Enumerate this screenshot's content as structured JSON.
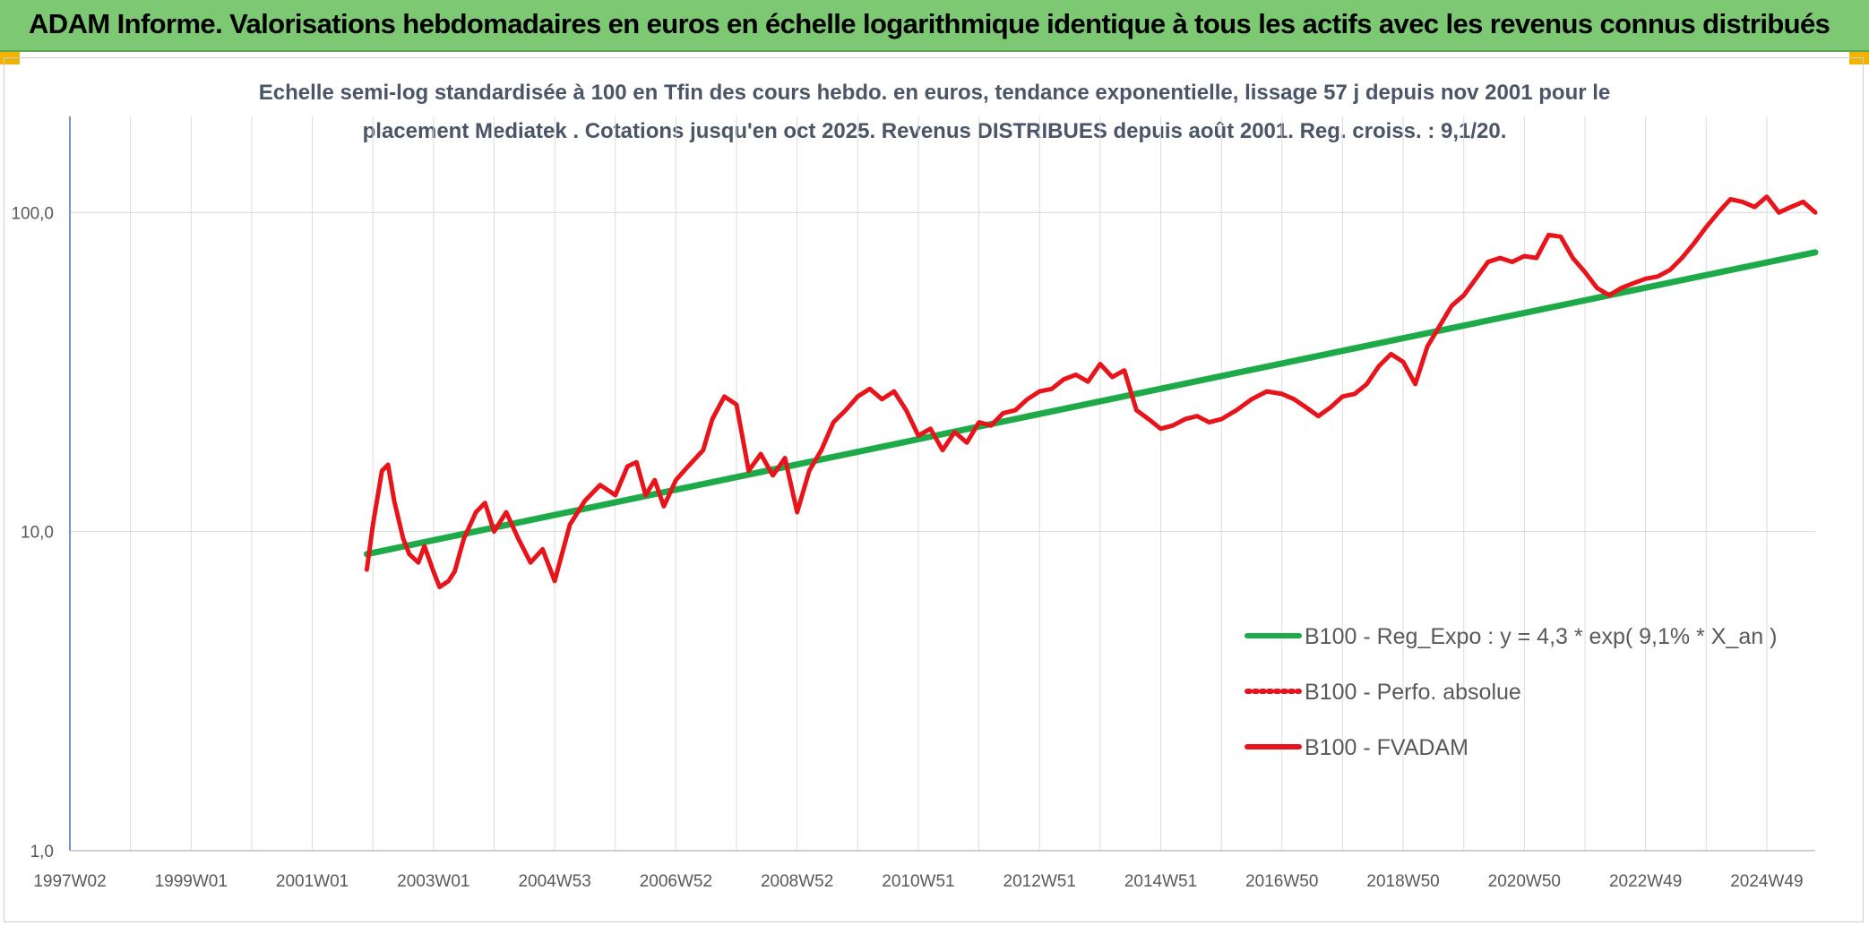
{
  "banner": {
    "title": "ADAM Informe. Valorisations hebdomadaires en euros en échelle logarithmique identique à tous les actifs avec les revenus connus distribués"
  },
  "chart_data": {
    "type": "line",
    "yscale": "log",
    "title_line1": "Echelle semi-log standardisée à 100 en Tfin des cours hebdo. en euros, tendance exponentielle, lissage 57 j depuis nov 2001 pour le",
    "title_line2": "placement Mediatek . Cotations jusqu'en oct 2025. Revenus DISTRIBUES depuis août 2001. Reg. croiss. : 9,1/20.",
    "ylim": [
      1,
      200
    ],
    "xlim": [
      1997.0,
      2025.8
    ],
    "y_ticks": [
      {
        "value": 1,
        "label": "1,0"
      },
      {
        "value": 10,
        "label": "10,0"
      },
      {
        "value": 100,
        "label": "100,0"
      }
    ],
    "x_ticks": [
      {
        "value": 1997.0,
        "label": "1997W02"
      },
      {
        "value": 1999.0,
        "label": "1999W01"
      },
      {
        "value": 2001.0,
        "label": "2001W01"
      },
      {
        "value": 2003.0,
        "label": "2003W01"
      },
      {
        "value": 2005.0,
        "label": "2004W53"
      },
      {
        "value": 2007.0,
        "label": "2006W52"
      },
      {
        "value": 2009.0,
        "label": "2008W52"
      },
      {
        "value": 2011.0,
        "label": "2010W51"
      },
      {
        "value": 2013.0,
        "label": "2012W51"
      },
      {
        "value": 2015.0,
        "label": "2014W51"
      },
      {
        "value": 2017.0,
        "label": "2016W50"
      },
      {
        "value": 2019.0,
        "label": "2018W50"
      },
      {
        "value": 2021.0,
        "label": "2020W50"
      },
      {
        "value": 2023.0,
        "label": "2022W49"
      },
      {
        "value": 2025.0,
        "label": "2024W49"
      }
    ],
    "series": [
      {
        "name": "B100 - Reg_Expo : y = 4,3 * exp( 9,1% *  X_an )",
        "color": "#1faa4a",
        "style": "solid",
        "x": [
          2001.9,
          2025.8
        ],
        "values": [
          8.5,
          75.0
        ]
      },
      {
        "name": "B100 - Perfo. absolue",
        "color": "#e8141c",
        "style": "dotted",
        "x": [],
        "values": []
      },
      {
        "name": "B100 - FVADAM",
        "color": "#e8141c",
        "style": "solid",
        "x": [
          2001.9,
          2002.0,
          2002.15,
          2002.25,
          2002.35,
          2002.5,
          2002.6,
          2002.75,
          2002.85,
          2003.0,
          2003.1,
          2003.25,
          2003.35,
          2003.5,
          2003.7,
          2003.85,
          2004.0,
          2004.2,
          2004.4,
          2004.6,
          2004.8,
          2005.0,
          2005.25,
          2005.5,
          2005.75,
          2006.0,
          2006.2,
          2006.35,
          2006.5,
          2006.65,
          2006.8,
          2007.0,
          2007.2,
          2007.45,
          2007.6,
          2007.8,
          2008.0,
          2008.2,
          2008.4,
          2008.6,
          2008.8,
          2009.0,
          2009.2,
          2009.4,
          2009.6,
          2009.8,
          2010.0,
          2010.2,
          2010.4,
          2010.6,
          2010.8,
          2011.0,
          2011.2,
          2011.4,
          2011.6,
          2011.8,
          2012.0,
          2012.2,
          2012.4,
          2012.6,
          2012.8,
          2013.0,
          2013.2,
          2013.4,
          2013.6,
          2013.8,
          2014.0,
          2014.2,
          2014.4,
          2014.6,
          2014.8,
          2015.0,
          2015.2,
          2015.4,
          2015.6,
          2015.8,
          2016.0,
          2016.25,
          2016.5,
          2016.75,
          2017.0,
          2017.2,
          2017.4,
          2017.6,
          2017.8,
          2018.0,
          2018.2,
          2018.4,
          2018.6,
          2018.8,
          2019.0,
          2019.2,
          2019.4,
          2019.6,
          2019.8,
          2020.0,
          2020.2,
          2020.4,
          2020.6,
          2020.8,
          2021.0,
          2021.2,
          2021.4,
          2021.6,
          2021.8,
          2022.0,
          2022.2,
          2022.4,
          2022.6,
          2022.8,
          2023.0,
          2023.2,
          2023.4,
          2023.6,
          2023.8,
          2024.0,
          2024.2,
          2024.4,
          2024.6,
          2024.8,
          2025.0,
          2025.2,
          2025.4,
          2025.6,
          2025.8
        ],
        "values": [
          7.6,
          10.5,
          15.5,
          16.2,
          12.5,
          9.5,
          8.5,
          8.0,
          9.0,
          7.5,
          6.7,
          7.0,
          7.5,
          9.5,
          11.5,
          12.3,
          10.0,
          11.5,
          9.5,
          8.0,
          8.8,
          7.0,
          10.5,
          12.5,
          14.0,
          13.0,
          16.0,
          16.5,
          13.0,
          14.5,
          12.0,
          14.5,
          16.0,
          18.0,
          22.5,
          26.5,
          25.0,
          15.5,
          17.5,
          15.0,
          17.0,
          11.5,
          15.5,
          18.0,
          22.0,
          24.0,
          26.5,
          28.0,
          26.0,
          27.5,
          24.0,
          20.0,
          21.0,
          18.0,
          20.5,
          19.0,
          22.0,
          21.5,
          23.5,
          24.0,
          26.0,
          27.5,
          28.0,
          30.0,
          31.0,
          29.5,
          33.5,
          30.5,
          32.0,
          24.0,
          22.5,
          21.0,
          21.5,
          22.5,
          23.0,
          22.0,
          22.5,
          24.0,
          26.0,
          27.5,
          27.0,
          26.0,
          24.5,
          23.0,
          24.5,
          26.5,
          27.0,
          29.0,
          33.0,
          36.0,
          34.0,
          29.0,
          38.0,
          44.0,
          51.0,
          55.0,
          62.0,
          70.0,
          72.0,
          70.0,
          73.0,
          72.0,
          85.0,
          84.0,
          72.0,
          65.0,
          58.0,
          55.0,
          58.0,
          60.0,
          62.0,
          63.0,
          66.0,
          72.0,
          80.0,
          90.0,
          100.0,
          110.0,
          108.0,
          104.0,
          112.0,
          100.0,
          104.0,
          108.0,
          100.0
        ]
      }
    ]
  }
}
